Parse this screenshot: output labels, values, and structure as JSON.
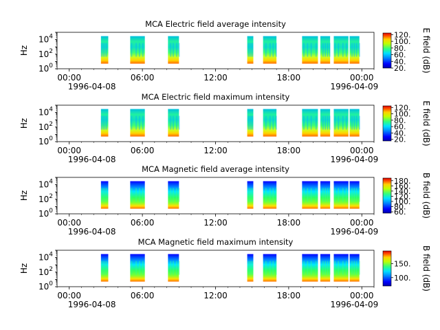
{
  "figure": {
    "time_ticks": [
      "00:00",
      "06:00",
      "12:00",
      "18:00",
      "00:00"
    ],
    "date_start": "1996-04-08",
    "date_end": "1996-04-09"
  },
  "chart_data": [
    {
      "type": "heatmap",
      "title": "MCA  Electric field average intensity",
      "ylabel": "Hz",
      "yscale": "log",
      "ylim": [
        1,
        100000
      ],
      "y_ticks": [
        1,
        100,
        10000
      ],
      "x_range_hours": [
        -1,
        25
      ],
      "colorbar": {
        "label": "E field (dB)",
        "range": [
          20,
          125
        ],
        "ticks": [
          20,
          40,
          60,
          80,
          100,
          120
        ]
      },
      "data_segments_hours": [
        [
          2.6,
          3.2
        ],
        [
          5.0,
          6.2
        ],
        [
          8.1,
          9.0
        ],
        [
          14.6,
          15.1
        ],
        [
          15.9,
          17.0
        ],
        [
          19.1,
          20.4
        ],
        [
          20.6,
          21.4
        ],
        [
          21.7,
          22.9
        ],
        [
          23.0,
          23.8
        ]
      ]
    },
    {
      "type": "heatmap",
      "title": "MCA  Electric field maximum intensity",
      "ylabel": "Hz",
      "yscale": "log",
      "ylim": [
        1,
        100000
      ],
      "y_ticks": [
        1,
        100,
        10000
      ],
      "x_range_hours": [
        -1,
        25
      ],
      "colorbar": {
        "label": "E field (dB)",
        "range": [
          15,
          125
        ],
        "ticks": [
          20,
          40,
          60,
          80,
          100,
          120
        ]
      },
      "data_segments_hours": [
        [
          2.6,
          3.2
        ],
        [
          5.0,
          6.2
        ],
        [
          8.1,
          9.0
        ],
        [
          14.6,
          15.1
        ],
        [
          15.9,
          17.0
        ],
        [
          19.1,
          20.4
        ],
        [
          20.6,
          21.4
        ],
        [
          21.7,
          22.9
        ],
        [
          23.0,
          23.8
        ]
      ]
    },
    {
      "type": "heatmap",
      "title": "MCA  Magnetic field average intensity",
      "ylabel": "Hz",
      "yscale": "log",
      "ylim": [
        1,
        100000
      ],
      "y_ticks": [
        1,
        100,
        10000
      ],
      "x_range_hours": [
        -1,
        25
      ],
      "colorbar": {
        "label": "B field (dB)",
        "range": [
          55,
          190
        ],
        "ticks": [
          60,
          80,
          100,
          120,
          140,
          160,
          180
        ]
      },
      "data_segments_hours": [
        [
          2.6,
          3.2
        ],
        [
          5.0,
          6.2
        ],
        [
          8.1,
          9.0
        ],
        [
          14.6,
          15.1
        ],
        [
          15.9,
          17.0
        ],
        [
          19.1,
          20.4
        ],
        [
          20.6,
          21.4
        ],
        [
          21.7,
          22.9
        ],
        [
          23.0,
          23.8
        ]
      ]
    },
    {
      "type": "heatmap",
      "title": "MCA  Magnetic field maximum intensity",
      "ylabel": "Hz",
      "yscale": "log",
      "ylim": [
        1,
        100000
      ],
      "y_ticks": [
        1,
        100,
        10000
      ],
      "x_range_hours": [
        -1,
        25
      ],
      "colorbar": {
        "label": "B field (dB)",
        "range": [
          70,
          195
        ],
        "ticks": [
          100,
          150
        ]
      },
      "data_segments_hours": [
        [
          2.6,
          3.2
        ],
        [
          5.0,
          6.2
        ],
        [
          8.1,
          9.0
        ],
        [
          14.6,
          15.1
        ],
        [
          15.9,
          17.0
        ],
        [
          19.1,
          20.4
        ],
        [
          20.6,
          21.4
        ],
        [
          21.7,
          22.9
        ],
        [
          23.0,
          23.8
        ]
      ]
    }
  ]
}
